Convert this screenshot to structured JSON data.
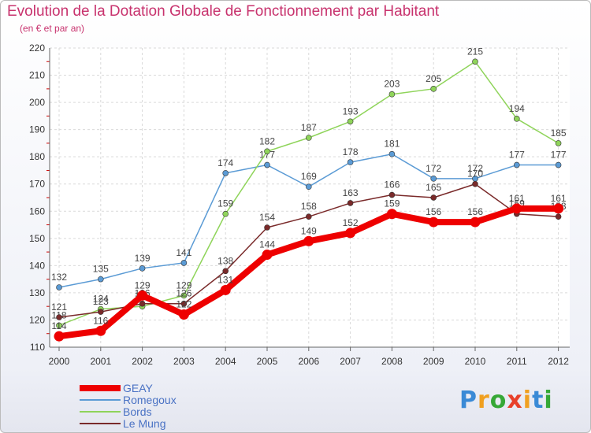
{
  "title": "Evolution de la Dotation Globale de Fonctionnement par Habitant",
  "subtitle": "(en € et par an)",
  "logo": {
    "letters": [
      "P",
      "r",
      "o",
      "x",
      "i",
      "t",
      "i"
    ],
    "colors": [
      "#3a8ad6",
      "#f0a020",
      "#36a836",
      "#e8402a",
      "#f0a020",
      "#3a8ad6",
      "#36a836"
    ]
  },
  "chart_data": {
    "type": "line",
    "x": [
      "2000",
      "2001",
      "2002",
      "2003",
      "2004",
      "2005",
      "2006",
      "2007",
      "2008",
      "2009",
      "2010",
      "2011",
      "2012"
    ],
    "ylim": [
      110,
      220
    ],
    "yticks": [
      110,
      120,
      130,
      140,
      150,
      160,
      170,
      180,
      190,
      200,
      210,
      220
    ],
    "title": "Evolution de la Dotation Globale de Fonctionnement par Habitant",
    "xlabel": "",
    "ylabel": "(en € et par an)",
    "grid": true,
    "series": [
      {
        "name": "Romegoux",
        "color": "#5b9bd5",
        "values": [
          132,
          135,
          139,
          141,
          174,
          177,
          169,
          178,
          181,
          172,
          172,
          177,
          177
        ]
      },
      {
        "name": "Bords",
        "color": "#8fd45a",
        "values": [
          118,
          124,
          125,
          129,
          159,
          182,
          187,
          193,
          203,
          205,
          215,
          194,
          185
        ]
      },
      {
        "name": "Le Mung",
        "color": "#7a2a2a",
        "values": [
          121,
          123,
          126,
          126,
          138,
          154,
          158,
          163,
          166,
          165,
          170,
          159,
          158
        ]
      },
      {
        "name": "GEAY",
        "color": "#ee0000",
        "values": [
          114,
          116,
          129,
          122,
          131,
          144,
          149,
          152,
          159,
          156,
          156,
          161,
          161
        ]
      }
    ],
    "legend_order": [
      "GEAY",
      "Romegoux",
      "Bords",
      "Le Mung"
    ]
  }
}
